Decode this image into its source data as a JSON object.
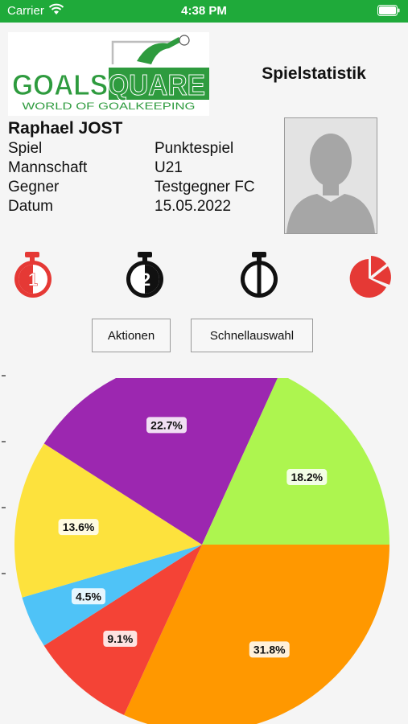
{
  "status_bar": {
    "carrier": "Carrier",
    "time": "4:38 PM"
  },
  "logo": {
    "brand": "GOALSQUARE",
    "tagline": "WORLD OF GOALKEEPING"
  },
  "header": {
    "title": "Spielstatistik"
  },
  "player": {
    "name": "Raphael JOST",
    "info": [
      {
        "label": "Spiel",
        "value": "Punktespiel"
      },
      {
        "label": "Mannschaft",
        "value": "U21"
      },
      {
        "label": "Gegner",
        "value": "Testgegner FC"
      },
      {
        "label": "Datum",
        "value": "15.05.2022"
      }
    ]
  },
  "toolbar": {
    "icons": [
      {
        "name": "stopwatch-half-1-icon",
        "label": "1",
        "color": "#e53935"
      },
      {
        "name": "stopwatch-half-2-icon",
        "label": "2",
        "color": "#111111"
      },
      {
        "name": "stopwatch-full-game-icon",
        "label": "",
        "color": "#111111"
      },
      {
        "name": "pie-chart-icon",
        "label": "",
        "color": "#e53935"
      }
    ]
  },
  "buttons": {
    "actions": "Aktionen",
    "quick_select": "Schnellauswahl"
  },
  "chart_data": {
    "type": "pie",
    "slices": [
      {
        "value": 31.8,
        "label": "31.8%",
        "color": "#ff9800"
      },
      {
        "value": 9.1,
        "label": "9.1%",
        "color": "#f44336"
      },
      {
        "value": 4.5,
        "label": "4.5%",
        "color": "#4fc3f7"
      },
      {
        "value": 13.6,
        "label": "13.6%",
        "color": "#fde23d"
      },
      {
        "value": 22.7,
        "label": "22.7%",
        "color": "#9c27b0"
      },
      {
        "value": 18.2,
        "label": "18.2%",
        "color": "#adf54f"
      }
    ]
  }
}
